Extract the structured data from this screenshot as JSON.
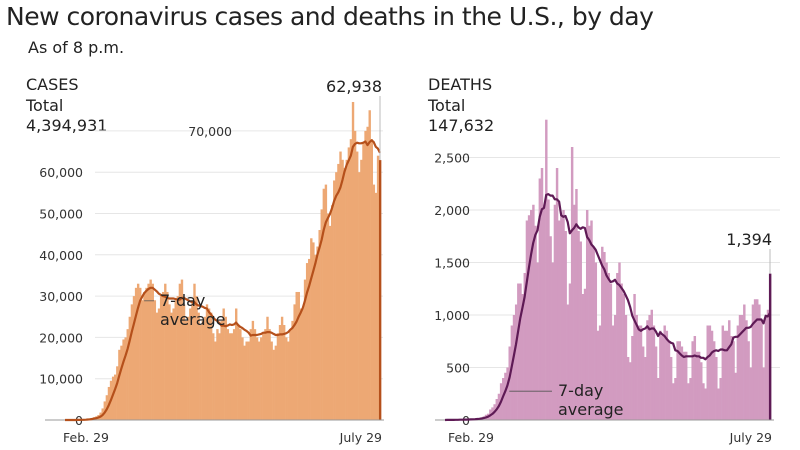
{
  "title": "New coronavirus cases and deaths in the U.S., by day",
  "subtitle": "As of 8 p.m.",
  "chart_data": [
    {
      "type": "bar",
      "panel_label": "CASES",
      "total_label": "Total",
      "total_value": "4,394,931",
      "last_value_label": "62,938",
      "avg_label_line1": "7-day",
      "avg_label_line2": "average",
      "x_tick_labels": [
        "Feb. 29",
        "July 29"
      ],
      "x_range": [
        "2020-02-29",
        "2020-07-29"
      ],
      "yticks": [
        0,
        10000,
        20000,
        30000,
        40000,
        50000,
        60000,
        70000
      ],
      "ytick_labels": [
        "0",
        "10,000",
        "20,000",
        "30,000",
        "40,000",
        "50,000",
        "60,000",
        "70,000"
      ],
      "ylim": [
        0,
        80000
      ],
      "grid": true,
      "bar_color": "#eda874",
      "line_color": "#b5501b",
      "series": [
        {
          "name": "Daily cases",
          "values": [
            0,
            0,
            0,
            10,
            20,
            30,
            50,
            70,
            100,
            120,
            200,
            300,
            400,
            500,
            700,
            900,
            1200,
            1800,
            2800,
            4500,
            6000,
            8000,
            9500,
            10500,
            11000,
            13000,
            17000,
            18000,
            19500,
            20000,
            22000,
            25000,
            28000,
            30000,
            32000,
            33000,
            32000,
            29000,
            31000,
            32000,
            33000,
            34000,
            33000,
            29000,
            26000,
            27000,
            30000,
            31000,
            33000,
            31000,
            28000,
            26000,
            27000,
            29000,
            30000,
            33000,
            34000,
            28000,
            24000,
            25000,
            27000,
            29000,
            33000,
            30000,
            26000,
            23000,
            24000,
            25000,
            28000,
            27000,
            26000,
            21000,
            19000,
            22000,
            21000,
            24000,
            27000,
            25000,
            22000,
            21000,
            21000,
            22000,
            27000,
            23000,
            22000,
            20000,
            18000,
            19000,
            19000,
            22000,
            24000,
            22000,
            20000,
            19000,
            20000,
            21000,
            22000,
            25000,
            22000,
            19000,
            17000,
            18000,
            21000,
            23000,
            25000,
            23000,
            20000,
            19000,
            22000,
            24000,
            28000,
            31000,
            31000,
            27000,
            27000,
            34000,
            38000,
            39000,
            44000,
            43000,
            40000,
            42000,
            46000,
            51000,
            56000,
            57000,
            50000,
            47000,
            52000,
            58000,
            60000,
            62000,
            65000,
            63000,
            61000,
            63000,
            66000,
            68000,
            77000,
            70000,
            65000,
            60000,
            63000,
            67000,
            70000,
            71000,
            75000,
            68000,
            57000,
            55000,
            64000,
            62938
          ]
        }
      ]
    },
    {
      "type": "bar",
      "panel_label": "DEATHS",
      "total_label": "Total",
      "total_value": "147,632",
      "last_value_label": "1,394",
      "avg_label_line1": "7-day",
      "avg_label_line2": "average",
      "x_tick_labels": [
        "Feb. 29",
        "July 29"
      ],
      "x_range": [
        "2020-02-29",
        "2020-07-29"
      ],
      "yticks": [
        0,
        500,
        1000,
        1500,
        2000,
        2500
      ],
      "ytick_labels": [
        "0",
        "500",
        "1,000",
        "1,500",
        "2,000",
        "2,500"
      ],
      "ylim": [
        0,
        3000
      ],
      "grid": true,
      "bar_color": "#d29bc0",
      "line_color": "#5e1a55",
      "series": [
        {
          "name": "Daily deaths",
          "values": [
            0,
            1,
            1,
            2,
            3,
            3,
            4,
            5,
            5,
            5,
            5,
            8,
            10,
            10,
            12,
            15,
            20,
            25,
            35,
            50,
            60,
            100,
            120,
            150,
            200,
            250,
            350,
            400,
            450,
            500,
            700,
            900,
            1000,
            1100,
            1300,
            1300,
            1200,
            1400,
            1900,
            1950,
            2000,
            2050,
            1850,
            1500,
            2300,
            2400,
            2050,
            2860,
            2100,
            1750,
            1500,
            2050,
            2400,
            1900,
            1950,
            2000,
            1800,
            1100,
            1300,
            2600,
            2050,
            2200,
            1800,
            1700,
            1200,
            1250,
            2000,
            1850,
            1900,
            1650,
            1500,
            850,
            900,
            1650,
            1600,
            1500,
            1400,
            1300,
            900,
            1000,
            1400,
            1500,
            1300,
            1200,
            1000,
            600,
            550,
            800,
            1200,
            1000,
            900,
            900,
            700,
            600,
            950,
            1000,
            1050,
            900,
            700,
            400,
            850,
            800,
            900,
            850,
            750,
            600,
            350,
            400,
            750,
            750,
            700,
            650,
            650,
            350,
            400,
            750,
            800,
            650,
            650,
            550,
            350,
            300,
            900,
            900,
            850,
            750,
            600,
            300,
            400,
            900,
            850,
            850,
            950,
            800,
            750,
            450,
            900,
            1000,
            1000,
            1100,
            950,
            750,
            500,
            1100,
            1150,
            1150,
            1100,
            950,
            500,
            1000,
            1050,
            1394
          ]
        }
      ]
    }
  ]
}
